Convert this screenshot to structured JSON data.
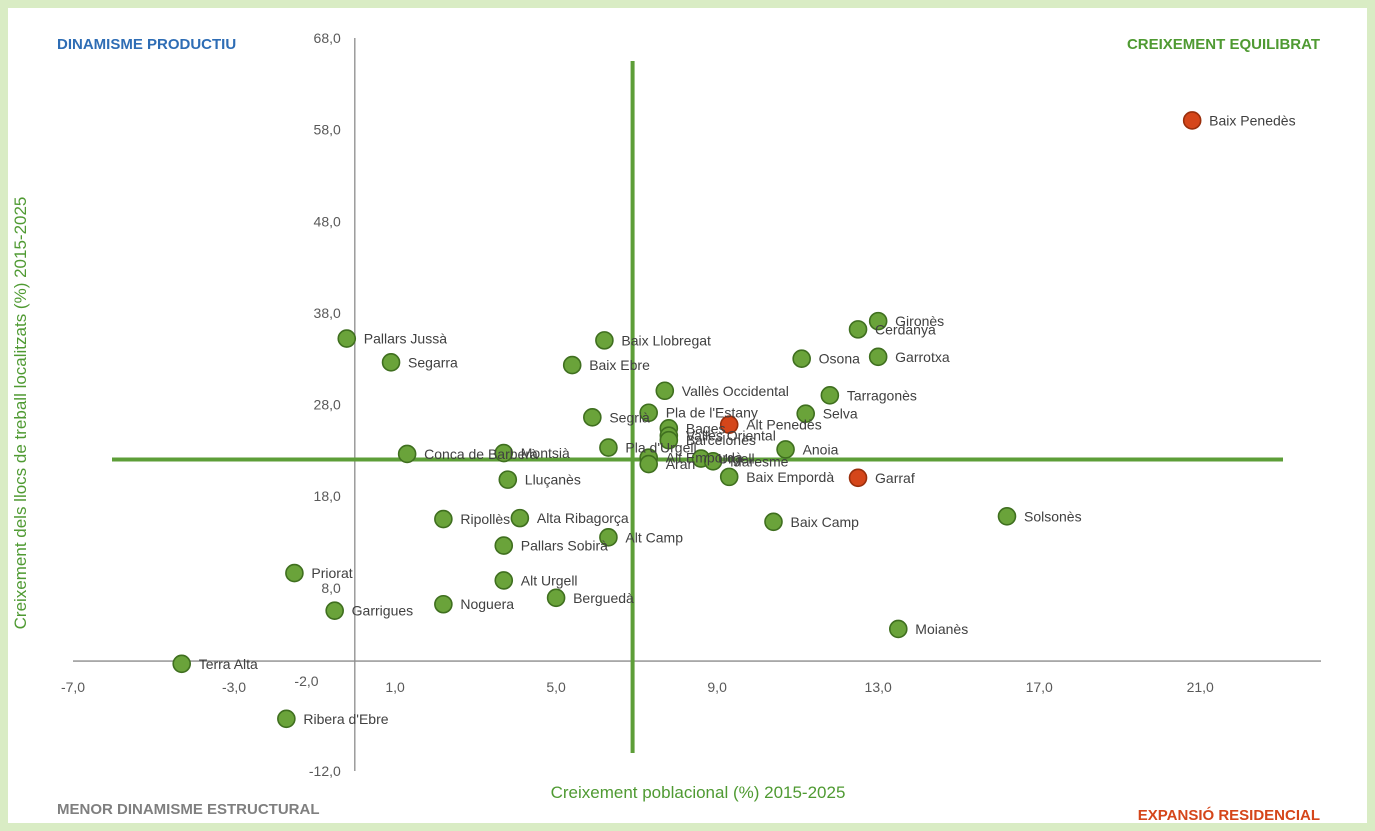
{
  "chart_data": {
    "type": "scatter",
    "xlabel": "Creixement poblacional (%) 2015-2025",
    "ylabel": "Creixement dels llocs de treball localitzats (%) 2015-2025",
    "xlim": [
      -7.0,
      24.0
    ],
    "ylim": [
      -12.0,
      68.0
    ],
    "x_ticks": [
      "-7,0",
      "-3,0",
      "1,0",
      "5,0",
      "9,0",
      "13,0",
      "17,0",
      "21,0"
    ],
    "x_tick_values": [
      -7,
      -3,
      1,
      5,
      9,
      13,
      17,
      21
    ],
    "y_ticks": [
      "68,0",
      "58,0",
      "48,0",
      "38,0",
      "28,0",
      "18,0",
      "8,0",
      "-2,0",
      "-12,0"
    ],
    "y_tick_values": [
      68,
      58,
      48,
      38,
      28,
      18,
      8,
      -2,
      -12
    ],
    "x_axis_label_extra": "-2,0",
    "reference_lines": {
      "x": 6.9,
      "y": 22.0
    },
    "quadrants": {
      "top_left": "DINAMISME PRODUCTIU",
      "top_right": "CREIXEMENT EQUILIBRAT",
      "bottom_left": "MENOR DINAMISME ESTRUCTURAL",
      "bottom_right": "EXPANSIÓ RESIDENCIAL"
    },
    "colors": {
      "normal": "#6aa33a",
      "normal_stroke": "#3f6f1f",
      "highlight": "#d5461a",
      "highlight_stroke": "#9a2f0c",
      "ref_line": "#5d9e38",
      "axis": "#8c8c8c",
      "top_left_label": "#2e6db5",
      "right_labels": "#4f9a32",
      "bottom_left_label": "#7f7f7f",
      "bottom_right_label": "#d5461a"
    },
    "points": [
      {
        "name": "Baix Penedès",
        "x": 20.8,
        "y": 59.0,
        "highlight": true
      },
      {
        "name": "Gironès",
        "x": 13.0,
        "y": 37.1,
        "highlight": false
      },
      {
        "name": "Cerdanya",
        "x": 12.5,
        "y": 36.2,
        "highlight": false
      },
      {
        "name": "Garrotxa",
        "x": 13.0,
        "y": 33.2,
        "highlight": false
      },
      {
        "name": "Osona",
        "x": 11.1,
        "y": 33.0,
        "highlight": false
      },
      {
        "name": "Pallars Jussà",
        "x": -0.2,
        "y": 35.2,
        "highlight": false
      },
      {
        "name": "Baix Llobregat",
        "x": 6.2,
        "y": 35.0,
        "highlight": false
      },
      {
        "name": "Segarra",
        "x": 0.9,
        "y": 32.6,
        "highlight": false
      },
      {
        "name": "Baix Ebre",
        "x": 5.4,
        "y": 32.3,
        "highlight": false
      },
      {
        "name": "Vallès Occidental",
        "x": 7.7,
        "y": 29.5,
        "highlight": false
      },
      {
        "name": "Tarragonès",
        "x": 11.8,
        "y": 29.0,
        "highlight": false
      },
      {
        "name": "Pla de l'Estany",
        "x": 7.3,
        "y": 27.1,
        "highlight": false
      },
      {
        "name": "Selva",
        "x": 11.2,
        "y": 27.0,
        "highlight": false
      },
      {
        "name": "Segrià",
        "x": 5.9,
        "y": 26.6,
        "highlight": false
      },
      {
        "name": "Bages",
        "x": 7.8,
        "y": 25.4,
        "highlight": false
      },
      {
        "name": "Alt Penedès",
        "x": 9.3,
        "y": 25.8,
        "highlight": true
      },
      {
        "name": "Vallès Oriental",
        "x": 7.8,
        "y": 24.6,
        "highlight": false
      },
      {
        "name": "Barcelonès",
        "x": 7.8,
        "y": 24.1,
        "highlight": false
      },
      {
        "name": "Pla d'Urgell",
        "x": 6.3,
        "y": 23.3,
        "highlight": false
      },
      {
        "name": "Anoia",
        "x": 10.7,
        "y": 23.1,
        "highlight": false
      },
      {
        "name": "Conca de Barberà",
        "x": 1.3,
        "y": 22.6,
        "highlight": false
      },
      {
        "name": "Montsià",
        "x": 3.7,
        "y": 22.7,
        "highlight": false
      },
      {
        "name": "Alt Empordà",
        "x": 7.3,
        "y": 22.2,
        "highlight": false
      },
      {
        "name": "Urgell",
        "x": 8.6,
        "y": 22.1,
        "highlight": false
      },
      {
        "name": "Maresme",
        "x": 8.9,
        "y": 21.8,
        "highlight": false
      },
      {
        "name": "Aran",
        "x": 7.3,
        "y": 21.5,
        "highlight": false
      },
      {
        "name": "Baix Empordà",
        "x": 9.3,
        "y": 20.1,
        "highlight": false
      },
      {
        "name": "Garraf",
        "x": 12.5,
        "y": 20.0,
        "highlight": true
      },
      {
        "name": "Lluçanès",
        "x": 3.8,
        "y": 19.8,
        "highlight": false
      },
      {
        "name": "Solsonès",
        "x": 16.2,
        "y": 15.8,
        "highlight": false
      },
      {
        "name": "Ripollès",
        "x": 2.2,
        "y": 15.5,
        "highlight": false
      },
      {
        "name": "Alta Ribagorça",
        "x": 4.1,
        "y": 15.6,
        "highlight": false
      },
      {
        "name": "Baix Camp",
        "x": 10.4,
        "y": 15.2,
        "highlight": false
      },
      {
        "name": "Alt Camp",
        "x": 6.3,
        "y": 13.5,
        "highlight": false
      },
      {
        "name": "Pallars Sobirà",
        "x": 3.7,
        "y": 12.6,
        "highlight": false
      },
      {
        "name": "Priorat",
        "x": -1.5,
        "y": 9.6,
        "highlight": false
      },
      {
        "name": "Alt Urgell",
        "x": 3.7,
        "y": 8.8,
        "highlight": false
      },
      {
        "name": "Berguedà",
        "x": 5.0,
        "y": 6.9,
        "highlight": false
      },
      {
        "name": "Noguera",
        "x": 2.2,
        "y": 6.2,
        "highlight": false
      },
      {
        "name": "Garrigues",
        "x": -0.5,
        "y": 5.5,
        "highlight": false
      },
      {
        "name": "Moianès",
        "x": 13.5,
        "y": 3.5,
        "highlight": false
      },
      {
        "name": "Terra Alta",
        "x": -4.3,
        "y": -0.3,
        "highlight": false
      },
      {
        "name": "Ribera d'Ebre",
        "x": -1.7,
        "y": -6.3,
        "highlight": false
      }
    ]
  }
}
